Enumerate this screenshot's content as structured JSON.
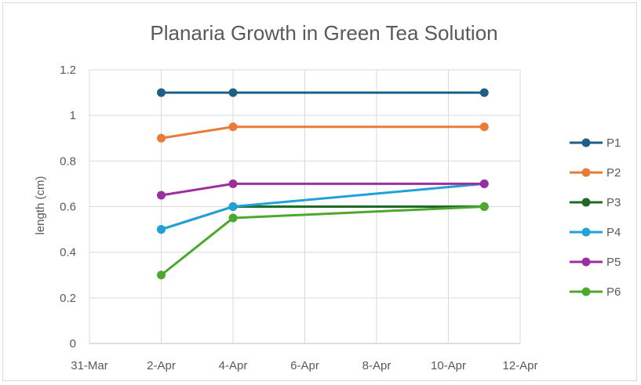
{
  "chart_data": {
    "type": "line",
    "title": "Planaria Growth in Green Tea Solution",
    "xlabel": "",
    "ylabel": "length (cm)",
    "ylim": [
      0,
      1.2
    ],
    "yticks": [
      0,
      0.2,
      0.4,
      0.6,
      0.8,
      1,
      1.2
    ],
    "ytick_labels": [
      "0",
      "0.2",
      "0.4",
      "0.6",
      "0.8",
      "1",
      "1.2"
    ],
    "xlim": [
      0,
      12
    ],
    "xticks": [
      0,
      2,
      4,
      6,
      8,
      10,
      12
    ],
    "xtick_labels": [
      "31-Mar",
      "2-Apr",
      "4-Apr",
      "6-Apr",
      "8-Apr",
      "10-Apr",
      "12-Apr"
    ],
    "x_unit": "days since 31-Mar",
    "x": [
      2,
      4,
      11
    ],
    "grid": true,
    "legend": "right",
    "series": [
      {
        "name": "P1",
        "color": "#1f5f86",
        "values": [
          1.1,
          1.1,
          1.1
        ]
      },
      {
        "name": "P2",
        "color": "#e97b35",
        "values": [
          0.9,
          0.95,
          0.95
        ]
      },
      {
        "name": "P3",
        "color": "#1d6b24",
        "values": [
          0.5,
          0.6,
          0.6
        ]
      },
      {
        "name": "P4",
        "color": "#1fa2d8",
        "values": [
          0.5,
          0.6,
          0.7
        ]
      },
      {
        "name": "P5",
        "color": "#9c2fa0",
        "values": [
          0.65,
          0.7,
          0.7
        ]
      },
      {
        "name": "P6",
        "color": "#4ea72e",
        "values": [
          0.3,
          0.55,
          0.6
        ]
      }
    ]
  }
}
